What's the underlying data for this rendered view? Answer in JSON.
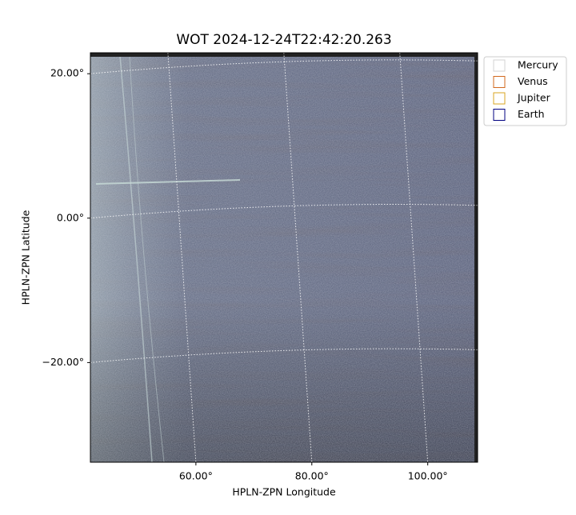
{
  "chart_data": {
    "type": "image",
    "title": "WOT 2024-12-24T22:42:20.263",
    "xlabel": "HPLN-ZPN Longitude",
    "ylabel": "HPLN-ZPN Latitude",
    "xlim": [
      41.8,
      108.6
    ],
    "ylim": [
      -33.8,
      22.9
    ],
    "xticks": [
      {
        "value": 60,
        "label": "60.00°"
      },
      {
        "value": 80,
        "label": "80.00°"
      },
      {
        "value": 100,
        "label": "100.00°"
      }
    ],
    "yticks": [
      {
        "value": -20,
        "label": "−20.00°"
      },
      {
        "value": 0,
        "label": "0.00°"
      },
      {
        "value": 20,
        "label": "20.00°"
      }
    ],
    "grid": true,
    "legend": "upper right",
    "series": [
      {
        "name": "Mercury",
        "color": "#d3d3d3"
      },
      {
        "name": "Venus",
        "color": "#d2691e"
      },
      {
        "name": "Jupiter",
        "color": "#daa520"
      },
      {
        "name": "Earth",
        "color": "#000080"
      }
    ]
  }
}
